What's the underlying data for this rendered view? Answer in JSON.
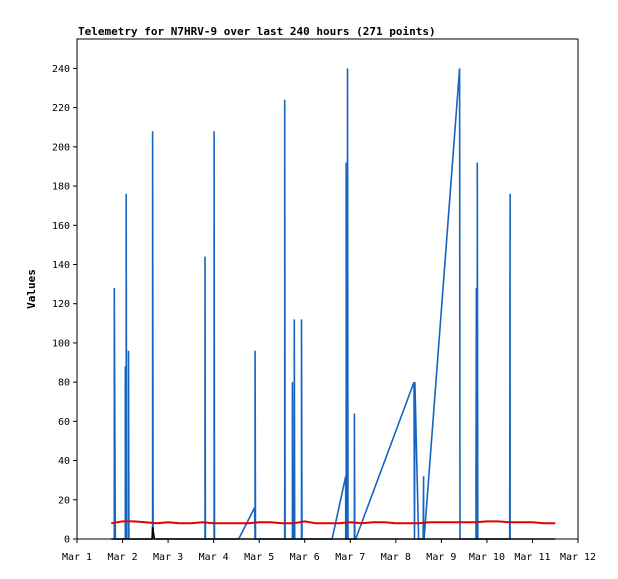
{
  "chart_data": {
    "type": "line",
    "title": "Telemetry for N7HRV-9 over last 240 hours (271 points)",
    "xlabel": "",
    "ylabel": "Values",
    "x_ticks": [
      "Mar 1",
      "Mar 2",
      "Mar 3",
      "Mar 4",
      "Mar 5",
      "Mar 6",
      "Mar 7",
      "Mar 8",
      "Mar 9",
      "Mar 10",
      "Mar 11",
      "Mar 12"
    ],
    "xlim": [
      0,
      11
    ],
    "ylim": [
      0,
      255
    ],
    "y_ticks": [
      0,
      20,
      40,
      60,
      80,
      100,
      120,
      140,
      160,
      180,
      200,
      220,
      240
    ],
    "grid": false,
    "series": [
      {
        "color": "#1565c0",
        "x": [
          0.8,
          0.82,
          0.82,
          0.84,
          1.05,
          1.06,
          1.06,
          1.07,
          1.08,
          1.08,
          1.09,
          1.12,
          1.13,
          1.13,
          1.14,
          1.5,
          1.65,
          1.66,
          1.66,
          1.67,
          2.8,
          2.81,
          2.81,
          2.82,
          3.0,
          3.01,
          3.01,
          3.02,
          3.55,
          3.9,
          3.91,
          3.91,
          3.92,
          4.55,
          4.56,
          4.56,
          4.57,
          4.72,
          4.73,
          4.73,
          4.74,
          4.76,
          4.77,
          4.77,
          4.78,
          4.92,
          4.93,
          4.93,
          4.94,
          5.6,
          5.9,
          5.9,
          5.91,
          5.91,
          5.93,
          5.94,
          5.94,
          5.95,
          6.08,
          6.09,
          6.09,
          6.1,
          6.12,
          7.4,
          7.41,
          7.41,
          7.42,
          7.5,
          7.6,
          7.61,
          7.61,
          7.62,
          8.4,
          8.41,
          8.41,
          8.42,
          8.75,
          8.76,
          8.76,
          8.77,
          8.78,
          8.79,
          8.79,
          8.8,
          8.86,
          8.9,
          9.05,
          9.5,
          9.51,
          9.51,
          9.52
        ],
        "y": [
          0,
          0,
          128,
          0,
          0,
          0,
          88,
          0,
          0,
          176,
          0,
          0,
          0,
          96,
          0,
          0,
          0,
          0,
          208,
          0,
          0,
          0,
          144,
          0,
          0,
          0,
          208,
          0,
          0,
          16,
          0,
          96,
          0,
          0,
          0,
          224,
          0,
          0,
          0,
          80,
          0,
          0,
          0,
          112,
          0,
          0,
          0,
          112,
          0,
          0,
          32,
          0,
          0,
          192,
          0,
          0,
          240,
          0,
          0,
          0,
          64,
          0,
          0,
          80,
          0,
          0,
          80,
          0,
          0,
          32,
          0,
          0,
          240,
          0,
          0,
          0,
          0,
          0,
          30,
          128,
          0,
          0,
          192,
          0,
          0,
          0,
          0,
          0,
          176,
          0,
          0
        ]
      },
      {
        "color": "#e00000",
        "x": [
          0.75,
          1.0,
          1.25,
          1.5,
          1.75,
          2.0,
          2.25,
          2.5,
          2.75,
          3.0,
          3.25,
          3.5,
          3.75,
          4.0,
          4.25,
          4.5,
          4.75,
          5.0,
          5.25,
          5.5,
          5.75,
          6.0,
          6.25,
          6.5,
          6.75,
          7.0,
          7.25,
          7.5,
          7.75,
          8.0,
          8.25,
          8.5,
          8.75,
          9.0,
          9.25,
          9.5,
          9.75,
          10.0,
          10.25,
          10.5
        ],
        "y": [
          8,
          9,
          9,
          8.5,
          8,
          8.5,
          8,
          8,
          8.5,
          8,
          8,
          8,
          8,
          8.5,
          8.5,
          8,
          8,
          9,
          8,
          8,
          8,
          8.5,
          8,
          8.5,
          8.5,
          8,
          8,
          8,
          8.5,
          8.5,
          8.5,
          8.5,
          8.5,
          9,
          9,
          8.5,
          8.5,
          8.5,
          8,
          8
        ]
      },
      {
        "color": "#000000",
        "x": [
          0.75,
          1.65,
          1.66,
          1.7,
          10.5
        ],
        "y": [
          0,
          0,
          6,
          0,
          0
        ]
      }
    ]
  }
}
